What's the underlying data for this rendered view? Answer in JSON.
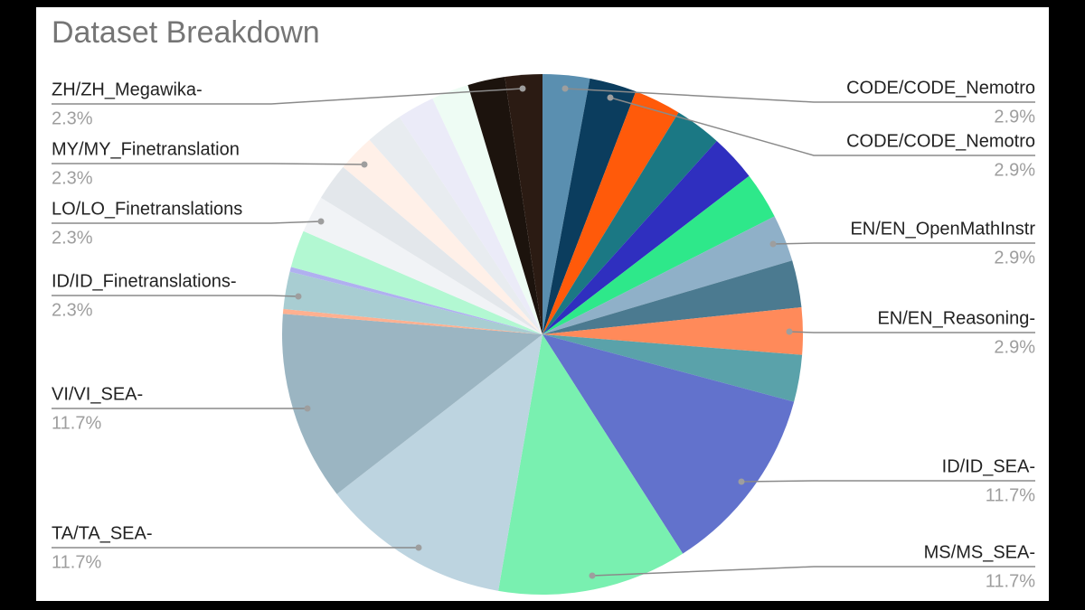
{
  "chart_data": {
    "type": "pie",
    "title": "Dataset Breakdown",
    "categories": [
      "CODE/CODE_Nemotro",
      "CODE/CODE_Nemotro",
      null,
      null,
      null,
      null,
      "EN/EN_OpenMathInstr",
      null,
      "EN/EN_Reasoning-",
      null,
      "ID/ID_SEA-",
      "MS/MS_SEA-",
      "TA/TA_SEA-",
      "VI/VI_SEA-",
      null,
      "ID/ID_Finetranslations-",
      null,
      null,
      "LO/LO_Finetranslations",
      null,
      "MY/MY_Finetranslation",
      null,
      null,
      null,
      null,
      "ZH/ZH_Megawika-"
    ],
    "values": [
      2.9,
      2.9,
      2.9,
      2.9,
      2.9,
      2.9,
      2.9,
      2.9,
      2.9,
      2.9,
      11.7,
      11.7,
      11.7,
      11.7,
      0.3,
      2.3,
      0.3,
      2.3,
      2.3,
      2.3,
      2.3,
      2.3,
      2.3,
      2.3,
      2.3,
      2.3
    ],
    "value_labels": [
      "2.9%",
      "2.9%",
      null,
      null,
      null,
      null,
      "2.9%",
      null,
      "2.9%",
      null,
      "11.7%",
      "11.7%",
      "11.7%",
      "11.7%",
      null,
      "2.3%",
      null,
      null,
      "2.3%",
      null,
      "2.3%",
      null,
      null,
      null,
      null,
      "2.3%"
    ],
    "colors": [
      "#5a8fb0",
      "#0b3d5e",
      "#ff5a0a",
      "#1b7884",
      "#2f2fbf",
      "#2ee88a",
      "#8fb0c8",
      "#4b7a90",
      "#ff8a5a",
      "#5aa2aa",
      "#6272cc",
      "#79f0b0",
      "#bdd4e0",
      "#9bb5c2",
      "#ffb090",
      "#a8cdd2",
      "#b0b0f0",
      "#b2f8d2",
      "#f1f3f6",
      "#e3e7eb",
      "#fff0e8",
      "#e8ecf0",
      "#ebebf8",
      "#eefcf4",
      "#1c130d",
      "#2b1b13"
    ]
  }
}
